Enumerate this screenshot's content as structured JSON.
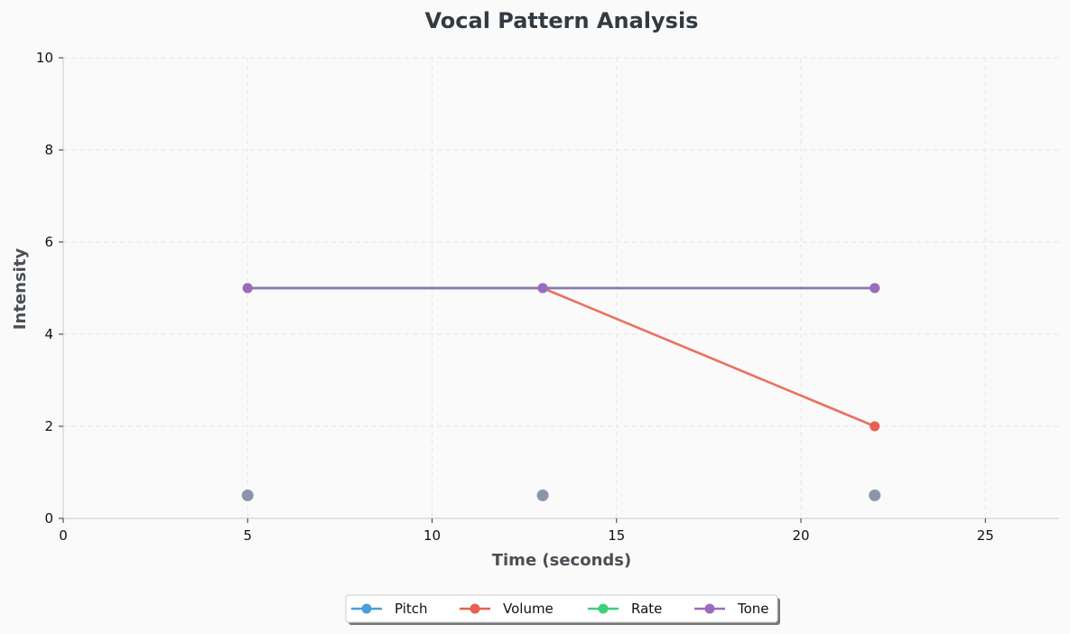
{
  "chart_data": {
    "type": "line",
    "title": "Vocal Pattern Analysis",
    "xlabel": "Time (seconds)",
    "ylabel": "Intensity",
    "xlim": [
      0,
      27
    ],
    "ylim": [
      0,
      10
    ],
    "xticks": [
      0,
      5,
      10,
      15,
      20,
      25
    ],
    "yticks": [
      0,
      2,
      4,
      6,
      8,
      10
    ],
    "grid": true,
    "legend_position": "bottom-center",
    "series": [
      {
        "name": "Pitch",
        "color": "#4a9fd8",
        "x": [
          5,
          13,
          22
        ],
        "y": [
          5,
          5,
          5
        ]
      },
      {
        "name": "Volume",
        "color": "#e8604f",
        "x": [
          5,
          13,
          22
        ],
        "y": [
          5,
          5,
          2
        ]
      },
      {
        "name": "Rate",
        "color": "#3fcf7a",
        "x": [
          5,
          13,
          22
        ],
        "y": [
          5,
          5,
          5
        ]
      },
      {
        "name": "Tone",
        "color": "#9b6bbd",
        "x": [
          5,
          13,
          22
        ],
        "y": [
          5,
          5,
          5
        ]
      }
    ],
    "markers": {
      "color": "#8a96a8",
      "x": [
        5,
        13,
        22
      ],
      "y": [
        0.5,
        0.5,
        0.5
      ]
    }
  }
}
